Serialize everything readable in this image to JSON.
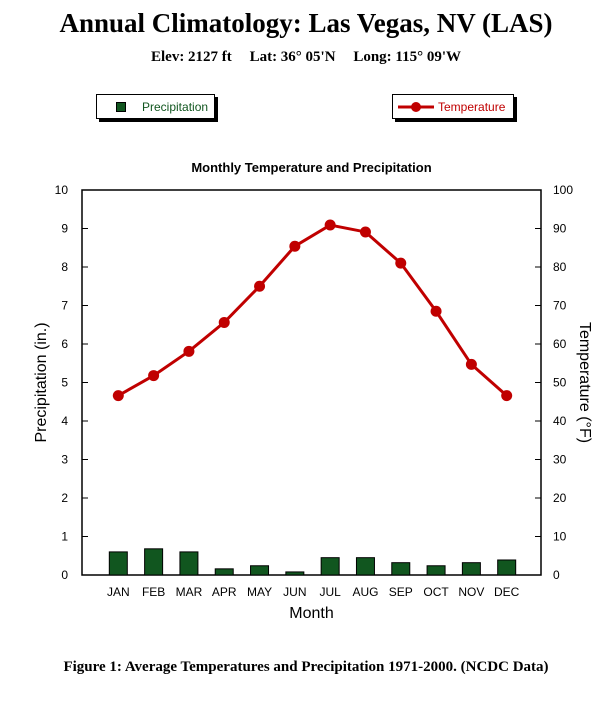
{
  "header": {
    "title": "Annual Climatology: Las Vegas, NV (LAS)",
    "elev": "Elev: 2127 ft",
    "lat": "Lat: 36° 05'N",
    "long": "Long: 115° 09'W"
  },
  "legend": {
    "precip": "Precipitation",
    "temp": "Temperature"
  },
  "caption": "Figure 1: Average Temperatures and Precipitation 1971-2000. (NCDC Data)",
  "colors": {
    "precip": "#11561f",
    "temp": "#c00000"
  },
  "chart_data": {
    "type": "bar+line",
    "title": "Monthly Temperature and Precipitation",
    "xlabel": "Month",
    "ylabel": "Precipitation (in.)",
    "y2label": "Temperature (°F)",
    "categories": [
      "JAN",
      "FEB",
      "MAR",
      "APR",
      "MAY",
      "JUN",
      "JUL",
      "AUG",
      "SEP",
      "OCT",
      "NOV",
      "DEC"
    ],
    "ylim": [
      0,
      10
    ],
    "y2lim": [
      0,
      100
    ],
    "yticks": [
      "0",
      "1",
      "2",
      "3",
      "4",
      "5",
      "6",
      "7",
      "8",
      "9",
      "10"
    ],
    "y2ticks": [
      "0",
      "10",
      "20",
      "30",
      "40",
      "50",
      "60",
      "70",
      "80",
      "90",
      "100"
    ],
    "series": [
      {
        "name": "Precipitation",
        "type": "bar",
        "axis": "left",
        "values": [
          0.6,
          0.68,
          0.6,
          0.16,
          0.24,
          0.08,
          0.45,
          0.45,
          0.32,
          0.24,
          0.32,
          0.39
        ]
      },
      {
        "name": "Temperature",
        "type": "line",
        "axis": "right",
        "values": [
          46.6,
          51.8,
          58.1,
          65.6,
          75.0,
          85.4,
          90.9,
          89.1,
          81.0,
          68.5,
          54.7,
          46.6
        ]
      }
    ],
    "grid": false
  }
}
